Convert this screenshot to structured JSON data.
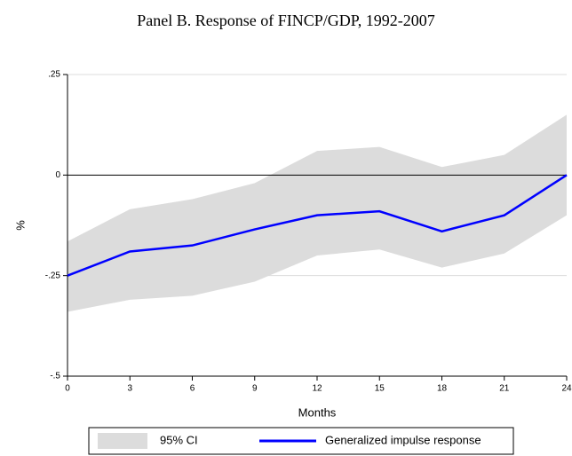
{
  "chart_data": {
    "type": "line",
    "title": "Panel B. Response of FINCP/GDP, 1992-2007",
    "x_label": "Months",
    "y_label": "%",
    "x": [
      0,
      3,
      6,
      9,
      12,
      15,
      18,
      21,
      24
    ],
    "series": [
      {
        "name": "95% CI",
        "color": "#dcdcdc",
        "upper": [
          -0.165,
          -0.085,
          -0.06,
          -0.02,
          0.06,
          0.07,
          0.02,
          0.05,
          0.15
        ],
        "lower": [
          -0.34,
          -0.31,
          -0.3,
          -0.265,
          -0.2,
          -0.185,
          -0.23,
          -0.195,
          -0.1
        ]
      },
      {
        "name": "Generalized impulse response",
        "color": "#0000ff",
        "values": [
          -0.25,
          -0.19,
          -0.175,
          -0.135,
          -0.1,
          -0.09,
          -0.14,
          -0.1,
          0.0
        ]
      }
    ],
    "xlim": [
      0,
      24
    ],
    "xticks": [
      0,
      3,
      6,
      9,
      12,
      15,
      18,
      21,
      24
    ],
    "ylim": [
      -0.5,
      0.25
    ],
    "yticks": [
      {
        "value": -0.5,
        "label": "-.5"
      },
      {
        "value": -0.25,
        "label": "-.25"
      },
      0,
      {
        "value": 0.25,
        "label": ".25"
      }
    ],
    "grid": true,
    "hline": 0,
    "legend": "bottom"
  }
}
